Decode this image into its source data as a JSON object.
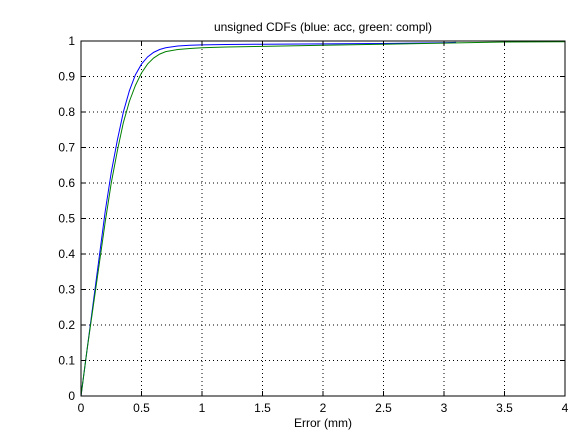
{
  "chart_data": {
    "type": "line",
    "title": "unsigned CDFs (blue: acc, green: compl)",
    "xlabel": "Error (mm)",
    "ylabel": "",
    "xlim": [
      0,
      4
    ],
    "ylim": [
      0,
      1
    ],
    "grid": true,
    "x_ticks": [
      "0",
      "0.5",
      "1",
      "1.5",
      "2",
      "2.5",
      "3",
      "3.5",
      "4"
    ],
    "y_ticks": [
      "0",
      "0.1",
      "0.2",
      "0.3",
      "0.4",
      "0.5",
      "0.6",
      "0.7",
      "0.8",
      "0.9",
      "1"
    ],
    "series": [
      {
        "color": "#0000ff",
        "x": [
          0,
          0.05,
          0.1,
          0.15,
          0.2,
          0.25,
          0.3,
          0.35,
          0.4,
          0.45,
          0.5,
          0.55,
          0.6,
          0.65,
          0.7,
          0.8,
          0.9,
          1.0,
          1.2,
          1.5,
          2.0,
          2.5,
          3.0,
          3.1
        ],
        "y": [
          0.0,
          0.13,
          0.26,
          0.39,
          0.52,
          0.63,
          0.72,
          0.8,
          0.86,
          0.905,
          0.935,
          0.955,
          0.968,
          0.976,
          0.981,
          0.986,
          0.988,
          0.989,
          0.99,
          0.991,
          0.992,
          0.993,
          0.995,
          0.996
        ]
      },
      {
        "color": "#008000",
        "x": [
          0,
          0.05,
          0.1,
          0.15,
          0.2,
          0.25,
          0.3,
          0.35,
          0.4,
          0.45,
          0.5,
          0.55,
          0.6,
          0.65,
          0.7,
          0.8,
          0.9,
          1.0,
          1.2,
          1.5,
          2.0,
          2.5,
          3.0,
          3.5,
          4.0
        ],
        "y": [
          0.0,
          0.13,
          0.25,
          0.37,
          0.49,
          0.6,
          0.69,
          0.77,
          0.83,
          0.875,
          0.91,
          0.935,
          0.952,
          0.963,
          0.97,
          0.976,
          0.979,
          0.981,
          0.983,
          0.985,
          0.988,
          0.991,
          0.994,
          0.997,
          0.998
        ]
      }
    ]
  }
}
